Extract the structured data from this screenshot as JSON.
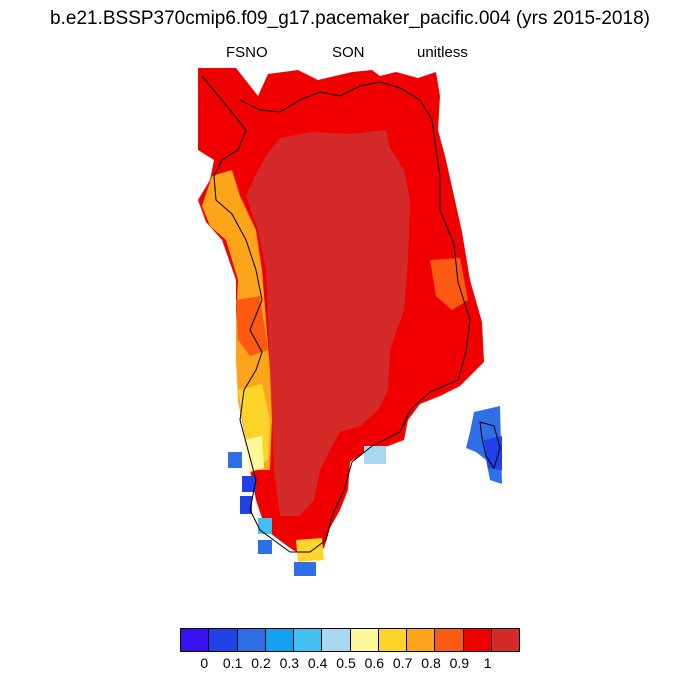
{
  "title": "b.e21.BSSP370cmip6.f09_g17.pacemaker_pacific.004 (yrs 2015-2018)",
  "subtitle": {
    "variable": "FSNO",
    "season": "SON",
    "units": "unitless"
  },
  "colorbar": {
    "colors": [
      "#3b10f0",
      "#2040e8",
      "#2f6fe6",
      "#16a0f0",
      "#44c0f0",
      "#a8d8f0",
      "#fdf99a",
      "#fdd52a",
      "#fca51a",
      "#fb5a12",
      "#f00000",
      "#d42a2a"
    ],
    "labels": [
      "0",
      "0.1",
      "0.2",
      "0.3",
      "0.4",
      "0.5",
      "0.6",
      "0.7",
      "0.8",
      "0.9",
      "1"
    ]
  }
}
